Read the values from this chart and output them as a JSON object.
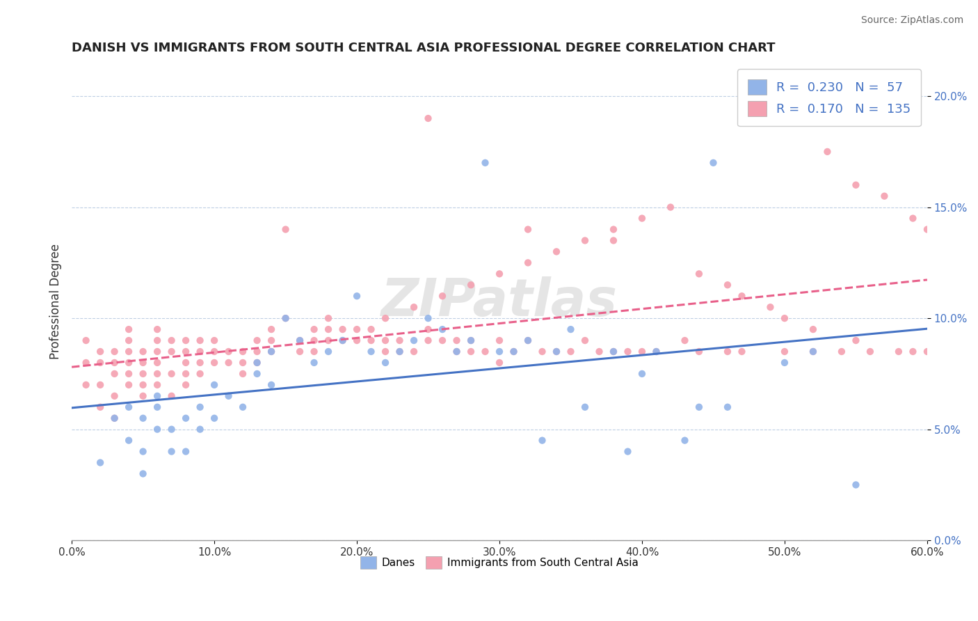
{
  "title": "DANISH VS IMMIGRANTS FROM SOUTH CENTRAL ASIA PROFESSIONAL DEGREE CORRELATION CHART",
  "source": "Source: ZipAtlas.com",
  "ylabel": "Professional Degree",
  "xlim": [
    0.0,
    0.6
  ],
  "ylim": [
    0.0,
    0.215
  ],
  "x_ticks": [
    0.0,
    0.1,
    0.2,
    0.3,
    0.4,
    0.5,
    0.6
  ],
  "x_tick_labels": [
    "0.0%",
    "10.0%",
    "20.0%",
    "30.0%",
    "40.0%",
    "50.0%",
    "60.0%"
  ],
  "y_ticks": [
    0.0,
    0.05,
    0.1,
    0.15,
    0.2
  ],
  "y_tick_labels": [
    "0.0%",
    "5.0%",
    "10.0%",
    "15.0%",
    "20.0%"
  ],
  "danes_color": "#92b4e8",
  "immigrants_color": "#f4a0b0",
  "danes_line_color": "#4472c4",
  "immigrants_line_color": "#e8608a",
  "R_danes": 0.23,
  "N_danes": 57,
  "R_immigrants": 0.17,
  "N_immigrants": 135,
  "legend_R_N_color": "#4472c4",
  "danes_x": [
    0.02,
    0.03,
    0.04,
    0.04,
    0.05,
    0.05,
    0.05,
    0.06,
    0.06,
    0.06,
    0.07,
    0.07,
    0.08,
    0.08,
    0.09,
    0.09,
    0.1,
    0.1,
    0.11,
    0.12,
    0.13,
    0.13,
    0.14,
    0.14,
    0.15,
    0.16,
    0.17,
    0.18,
    0.19,
    0.2,
    0.21,
    0.22,
    0.23,
    0.24,
    0.25,
    0.26,
    0.27,
    0.28,
    0.29,
    0.3,
    0.31,
    0.32,
    0.33,
    0.34,
    0.35,
    0.36,
    0.38,
    0.39,
    0.4,
    0.41,
    0.43,
    0.44,
    0.45,
    0.46,
    0.5,
    0.52,
    0.55
  ],
  "danes_y": [
    0.035,
    0.055,
    0.045,
    0.06,
    0.03,
    0.04,
    0.055,
    0.05,
    0.06,
    0.065,
    0.04,
    0.05,
    0.04,
    0.055,
    0.05,
    0.06,
    0.055,
    0.07,
    0.065,
    0.06,
    0.075,
    0.08,
    0.07,
    0.085,
    0.1,
    0.09,
    0.08,
    0.085,
    0.09,
    0.11,
    0.085,
    0.08,
    0.085,
    0.09,
    0.1,
    0.095,
    0.085,
    0.09,
    0.17,
    0.085,
    0.085,
    0.09,
    0.045,
    0.085,
    0.095,
    0.06,
    0.085,
    0.04,
    0.075,
    0.085,
    0.045,
    0.06,
    0.17,
    0.06,
    0.08,
    0.085,
    0.025
  ],
  "immigrants_x": [
    0.01,
    0.01,
    0.01,
    0.02,
    0.02,
    0.02,
    0.02,
    0.03,
    0.03,
    0.03,
    0.03,
    0.03,
    0.04,
    0.04,
    0.04,
    0.04,
    0.04,
    0.04,
    0.05,
    0.05,
    0.05,
    0.05,
    0.05,
    0.06,
    0.06,
    0.06,
    0.06,
    0.06,
    0.06,
    0.07,
    0.07,
    0.07,
    0.07,
    0.08,
    0.08,
    0.08,
    0.08,
    0.08,
    0.09,
    0.09,
    0.09,
    0.09,
    0.1,
    0.1,
    0.1,
    0.11,
    0.11,
    0.12,
    0.12,
    0.12,
    0.13,
    0.13,
    0.13,
    0.14,
    0.14,
    0.14,
    0.15,
    0.15,
    0.16,
    0.16,
    0.17,
    0.17,
    0.17,
    0.18,
    0.18,
    0.18,
    0.19,
    0.19,
    0.2,
    0.2,
    0.21,
    0.21,
    0.22,
    0.22,
    0.23,
    0.23,
    0.24,
    0.25,
    0.25,
    0.26,
    0.27,
    0.27,
    0.28,
    0.28,
    0.29,
    0.3,
    0.3,
    0.31,
    0.32,
    0.33,
    0.34,
    0.35,
    0.36,
    0.37,
    0.38,
    0.39,
    0.4,
    0.41,
    0.43,
    0.44,
    0.46,
    0.47,
    0.5,
    0.52,
    0.54,
    0.55,
    0.56,
    0.58,
    0.59,
    0.6,
    0.22,
    0.24,
    0.26,
    0.28,
    0.3,
    0.32,
    0.34,
    0.36,
    0.38,
    0.4,
    0.42,
    0.44,
    0.46,
    0.47,
    0.49,
    0.5,
    0.52,
    0.53,
    0.55,
    0.57,
    0.59,
    0.6,
    0.25,
    0.32,
    0.38
  ],
  "immigrants_y": [
    0.07,
    0.08,
    0.09,
    0.06,
    0.07,
    0.08,
    0.085,
    0.055,
    0.065,
    0.075,
    0.08,
    0.085,
    0.07,
    0.075,
    0.08,
    0.085,
    0.09,
    0.095,
    0.065,
    0.07,
    0.075,
    0.08,
    0.085,
    0.07,
    0.075,
    0.08,
    0.085,
    0.09,
    0.095,
    0.065,
    0.075,
    0.085,
    0.09,
    0.07,
    0.075,
    0.08,
    0.085,
    0.09,
    0.075,
    0.08,
    0.085,
    0.09,
    0.08,
    0.085,
    0.09,
    0.08,
    0.085,
    0.075,
    0.08,
    0.085,
    0.08,
    0.085,
    0.09,
    0.085,
    0.09,
    0.095,
    0.14,
    0.1,
    0.085,
    0.09,
    0.085,
    0.09,
    0.095,
    0.09,
    0.095,
    0.1,
    0.09,
    0.095,
    0.09,
    0.095,
    0.09,
    0.095,
    0.085,
    0.09,
    0.085,
    0.09,
    0.085,
    0.09,
    0.095,
    0.09,
    0.085,
    0.09,
    0.085,
    0.09,
    0.085,
    0.08,
    0.09,
    0.085,
    0.09,
    0.085,
    0.085,
    0.085,
    0.09,
    0.085,
    0.085,
    0.085,
    0.085,
    0.085,
    0.09,
    0.085,
    0.085,
    0.085,
    0.085,
    0.085,
    0.085,
    0.09,
    0.085,
    0.085,
    0.085,
    0.085,
    0.1,
    0.105,
    0.11,
    0.115,
    0.12,
    0.125,
    0.13,
    0.135,
    0.14,
    0.145,
    0.15,
    0.12,
    0.115,
    0.11,
    0.105,
    0.1,
    0.095,
    0.175,
    0.16,
    0.155,
    0.145,
    0.14,
    0.19,
    0.14,
    0.135
  ]
}
